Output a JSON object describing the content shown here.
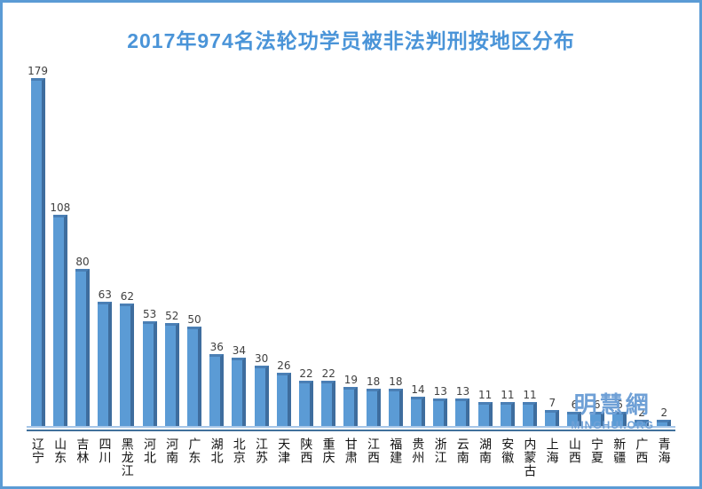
{
  "frame": {
    "border_color": "#5b9bd5",
    "background": "#ffffff"
  },
  "title": {
    "text": "2017年974名法轮功学员被非法判刑按地区分布",
    "color": "#4a94d8"
  },
  "watermark": {
    "line1": "明慧網",
    "line2": "MINGHUI.ORG",
    "color": "#6fa0d6"
  },
  "chart_data": {
    "type": "bar",
    "title": "2017年974名法轮功学员被非法判刑按地区分布",
    "xlabel": "",
    "ylabel": "",
    "categories": [
      "辽宁",
      "山东",
      "吉林",
      "四川",
      "黑龙江",
      "河北",
      "河南",
      "广东",
      "湖北",
      "北京",
      "江苏",
      "天津",
      "陕西",
      "重庆",
      "甘肃",
      "江西",
      "福建",
      "贵州",
      "浙江",
      "云南",
      "湖南",
      "安徽",
      "内蒙古",
      "上海",
      "山西",
      "宁夏",
      "新疆",
      "广西",
      "青海"
    ],
    "values": [
      179,
      108,
      80,
      63,
      62,
      53,
      52,
      50,
      36,
      34,
      30,
      26,
      22,
      22,
      19,
      18,
      18,
      14,
      13,
      13,
      11,
      11,
      11,
      7,
      6,
      6,
      6,
      2,
      2
    ],
    "data_labels_shown": true,
    "grid": false,
    "legend": false,
    "bar_color": "#5b9bd5",
    "bar_side_color": "#3e6d9e",
    "bar_top_color": "#4a7fb5",
    "value_label_color": "#404040",
    "axis_line_light_color": "#a6c6e8",
    "axis_line_dark_color": "#41719c"
  }
}
